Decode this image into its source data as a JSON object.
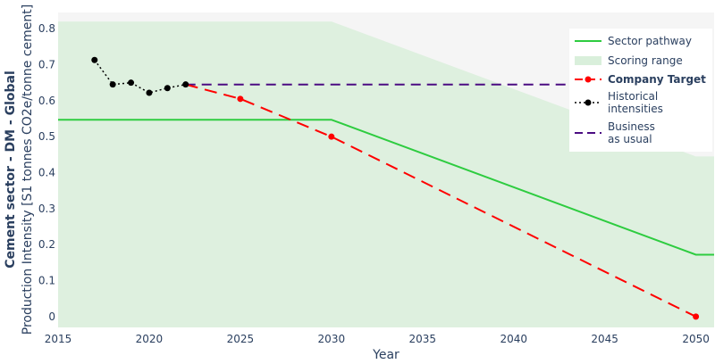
{
  "chart_data": {
    "type": "line",
    "title": "",
    "xlabel": "Year",
    "ylabel_line1": "Cement sector - DM - Global",
    "ylabel_line2": "Production Intensity [S1 tonnes CO2e/tonne cement]",
    "xlim": [
      2015,
      2051
    ],
    "ylim": [
      -0.03,
      0.845
    ],
    "xticks": [
      2015,
      2020,
      2025,
      2030,
      2035,
      2040,
      2045,
      2050
    ],
    "yticks": [
      0,
      0.1,
      0.2,
      0.3,
      0.4,
      0.5,
      0.6,
      0.7,
      0.8
    ],
    "grid": false,
    "legend_position": "top-right",
    "colors": {
      "sector_pathway": "#2ecc40",
      "scoring_range": "#d9efdb",
      "company_target": "#ff0000",
      "historical": "#000000",
      "business_as_usual": "#4b0c82",
      "plot_background": "#f5f5f5",
      "text": "#2a3f5f"
    },
    "series": [
      {
        "name": "Sector pathway",
        "style": "solid",
        "x": [
          2015,
          2030,
          2050,
          2051
        ],
        "y": [
          0.547,
          0.547,
          0.172,
          0.172
        ]
      },
      {
        "name": "Scoring range",
        "style": "area",
        "x": [
          2015,
          2030,
          2050,
          2051
        ],
        "y_upper": [
          0.82,
          0.82,
          0.445,
          0.445
        ],
        "y_lower": [
          -0.03,
          -0.03,
          -0.03,
          -0.03
        ]
      },
      {
        "name": "Company Target",
        "style": "dashed-markers",
        "x": [
          2022,
          2025,
          2030,
          2050
        ],
        "y": [
          0.645,
          0.605,
          0.5,
          0.0
        ],
        "marker_x": [
          2025,
          2030,
          2050
        ],
        "marker_y": [
          0.605,
          0.5,
          0.0
        ]
      },
      {
        "name": "Historical intensities",
        "style": "dotted-markers",
        "x": [
          2017,
          2018,
          2019,
          2020,
          2021,
          2022
        ],
        "y": [
          0.713,
          0.645,
          0.65,
          0.622,
          0.635,
          0.645
        ]
      },
      {
        "name": "Business as usual",
        "style": "dashed",
        "x": [
          2022,
          2051
        ],
        "y": [
          0.645,
          0.645
        ]
      }
    ],
    "legend": [
      {
        "lines": [
          "Sector pathway"
        ],
        "bold": false,
        "key": "sector_pathway"
      },
      {
        "lines": [
          "Scoring range"
        ],
        "bold": false,
        "key": "scoring_range"
      },
      {
        "lines": [
          "Company Target"
        ],
        "bold": true,
        "key": "company_target"
      },
      {
        "lines": [
          "Historical",
          "intensities"
        ],
        "bold": false,
        "key": "historical"
      },
      {
        "lines": [
          "Business",
          "as usual"
        ],
        "bold": false,
        "key": "business_as_usual"
      }
    ]
  }
}
